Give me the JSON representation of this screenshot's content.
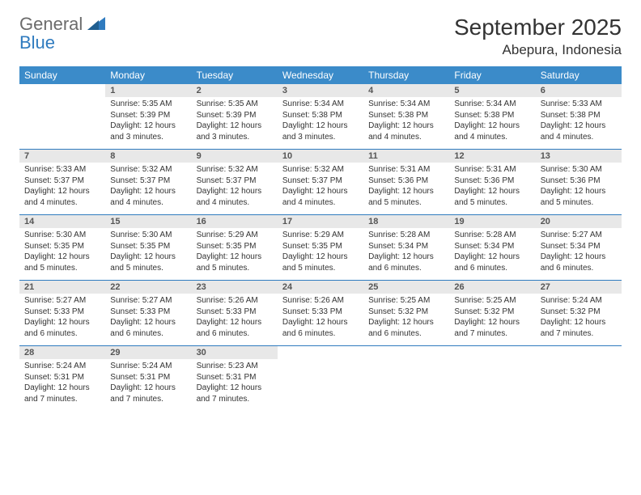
{
  "brand": {
    "text1": "General",
    "text2": "Blue"
  },
  "title": "September 2025",
  "location": "Abepura, Indonesia",
  "colors": {
    "header_bg": "#3b8bc9",
    "header_text": "#ffffff",
    "row_divider": "#2f7bbf",
    "daynum_bg": "#e8e8e8",
    "body_text": "#333333",
    "logo_gray": "#6b6b6b",
    "logo_blue": "#2f7bbf"
  },
  "typography": {
    "title_fontsize": 28,
    "location_fontsize": 17,
    "weekday_fontsize": 12,
    "daynum_fontsize": 11,
    "body_fontsize": 10
  },
  "weekdays": [
    "Sunday",
    "Monday",
    "Tuesday",
    "Wednesday",
    "Thursday",
    "Friday",
    "Saturday"
  ],
  "weeks": [
    [
      {
        "blank": true
      },
      {
        "day": "1",
        "sunrise": "Sunrise: 5:35 AM",
        "sunset": "Sunset: 5:39 PM",
        "daylight": "Daylight: 12 hours and 3 minutes."
      },
      {
        "day": "2",
        "sunrise": "Sunrise: 5:35 AM",
        "sunset": "Sunset: 5:39 PM",
        "daylight": "Daylight: 12 hours and 3 minutes."
      },
      {
        "day": "3",
        "sunrise": "Sunrise: 5:34 AM",
        "sunset": "Sunset: 5:38 PM",
        "daylight": "Daylight: 12 hours and 3 minutes."
      },
      {
        "day": "4",
        "sunrise": "Sunrise: 5:34 AM",
        "sunset": "Sunset: 5:38 PM",
        "daylight": "Daylight: 12 hours and 4 minutes."
      },
      {
        "day": "5",
        "sunrise": "Sunrise: 5:34 AM",
        "sunset": "Sunset: 5:38 PM",
        "daylight": "Daylight: 12 hours and 4 minutes."
      },
      {
        "day": "6",
        "sunrise": "Sunrise: 5:33 AM",
        "sunset": "Sunset: 5:38 PM",
        "daylight": "Daylight: 12 hours and 4 minutes."
      }
    ],
    [
      {
        "day": "7",
        "sunrise": "Sunrise: 5:33 AM",
        "sunset": "Sunset: 5:37 PM",
        "daylight": "Daylight: 12 hours and 4 minutes."
      },
      {
        "day": "8",
        "sunrise": "Sunrise: 5:32 AM",
        "sunset": "Sunset: 5:37 PM",
        "daylight": "Daylight: 12 hours and 4 minutes."
      },
      {
        "day": "9",
        "sunrise": "Sunrise: 5:32 AM",
        "sunset": "Sunset: 5:37 PM",
        "daylight": "Daylight: 12 hours and 4 minutes."
      },
      {
        "day": "10",
        "sunrise": "Sunrise: 5:32 AM",
        "sunset": "Sunset: 5:37 PM",
        "daylight": "Daylight: 12 hours and 4 minutes."
      },
      {
        "day": "11",
        "sunrise": "Sunrise: 5:31 AM",
        "sunset": "Sunset: 5:36 PM",
        "daylight": "Daylight: 12 hours and 5 minutes."
      },
      {
        "day": "12",
        "sunrise": "Sunrise: 5:31 AM",
        "sunset": "Sunset: 5:36 PM",
        "daylight": "Daylight: 12 hours and 5 minutes."
      },
      {
        "day": "13",
        "sunrise": "Sunrise: 5:30 AM",
        "sunset": "Sunset: 5:36 PM",
        "daylight": "Daylight: 12 hours and 5 minutes."
      }
    ],
    [
      {
        "day": "14",
        "sunrise": "Sunrise: 5:30 AM",
        "sunset": "Sunset: 5:35 PM",
        "daylight": "Daylight: 12 hours and 5 minutes."
      },
      {
        "day": "15",
        "sunrise": "Sunrise: 5:30 AM",
        "sunset": "Sunset: 5:35 PM",
        "daylight": "Daylight: 12 hours and 5 minutes."
      },
      {
        "day": "16",
        "sunrise": "Sunrise: 5:29 AM",
        "sunset": "Sunset: 5:35 PM",
        "daylight": "Daylight: 12 hours and 5 minutes."
      },
      {
        "day": "17",
        "sunrise": "Sunrise: 5:29 AM",
        "sunset": "Sunset: 5:35 PM",
        "daylight": "Daylight: 12 hours and 5 minutes."
      },
      {
        "day": "18",
        "sunrise": "Sunrise: 5:28 AM",
        "sunset": "Sunset: 5:34 PM",
        "daylight": "Daylight: 12 hours and 6 minutes."
      },
      {
        "day": "19",
        "sunrise": "Sunrise: 5:28 AM",
        "sunset": "Sunset: 5:34 PM",
        "daylight": "Daylight: 12 hours and 6 minutes."
      },
      {
        "day": "20",
        "sunrise": "Sunrise: 5:27 AM",
        "sunset": "Sunset: 5:34 PM",
        "daylight": "Daylight: 12 hours and 6 minutes."
      }
    ],
    [
      {
        "day": "21",
        "sunrise": "Sunrise: 5:27 AM",
        "sunset": "Sunset: 5:33 PM",
        "daylight": "Daylight: 12 hours and 6 minutes."
      },
      {
        "day": "22",
        "sunrise": "Sunrise: 5:27 AM",
        "sunset": "Sunset: 5:33 PM",
        "daylight": "Daylight: 12 hours and 6 minutes."
      },
      {
        "day": "23",
        "sunrise": "Sunrise: 5:26 AM",
        "sunset": "Sunset: 5:33 PM",
        "daylight": "Daylight: 12 hours and 6 minutes."
      },
      {
        "day": "24",
        "sunrise": "Sunrise: 5:26 AM",
        "sunset": "Sunset: 5:33 PM",
        "daylight": "Daylight: 12 hours and 6 minutes."
      },
      {
        "day": "25",
        "sunrise": "Sunrise: 5:25 AM",
        "sunset": "Sunset: 5:32 PM",
        "daylight": "Daylight: 12 hours and 6 minutes."
      },
      {
        "day": "26",
        "sunrise": "Sunrise: 5:25 AM",
        "sunset": "Sunset: 5:32 PM",
        "daylight": "Daylight: 12 hours and 7 minutes."
      },
      {
        "day": "27",
        "sunrise": "Sunrise: 5:24 AM",
        "sunset": "Sunset: 5:32 PM",
        "daylight": "Daylight: 12 hours and 7 minutes."
      }
    ],
    [
      {
        "day": "28",
        "sunrise": "Sunrise: 5:24 AM",
        "sunset": "Sunset: 5:31 PM",
        "daylight": "Daylight: 12 hours and 7 minutes."
      },
      {
        "day": "29",
        "sunrise": "Sunrise: 5:24 AM",
        "sunset": "Sunset: 5:31 PM",
        "daylight": "Daylight: 12 hours and 7 minutes."
      },
      {
        "day": "30",
        "sunrise": "Sunrise: 5:23 AM",
        "sunset": "Sunset: 5:31 PM",
        "daylight": "Daylight: 12 hours and 7 minutes."
      },
      {
        "blank": true
      },
      {
        "blank": true
      },
      {
        "blank": true
      },
      {
        "blank": true
      }
    ]
  ]
}
